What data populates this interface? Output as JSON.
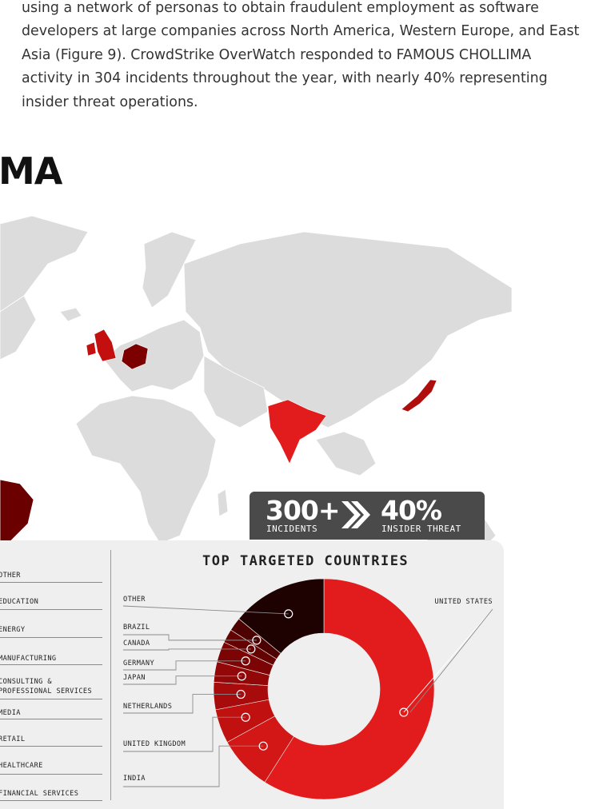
{
  "body_text": {
    "paragraph": "using a network of personas to obtain fraudulent employment as software developers at large companies across North America, Western Europe, and East Asia (Figure 9). CrowdStrike OverWatch responded to FAMOUS CHOLLIMA activity in 304 incidents throughout the year, with nearly 40% representing insider threat operations.",
    "heading": "MA"
  },
  "colors": {
    "map_land": "#dcdcdc",
    "highlight_red": "#e21c1c",
    "highlight_dark": "#7d0000",
    "panel_bg": "#efefef",
    "stat_box_bg": "#4a4a4a"
  },
  "stats": {
    "incidents_value": "300+",
    "incidents_label": "INCIDENTS",
    "insider_value": "40%",
    "insider_label": "INSIDER THREAT",
    "chevron_icon": "double-chevron-right-icon"
  },
  "industries": [
    "OTHER",
    "EDUCATION",
    "ENERGY",
    "MANUFACTURING",
    "CONSULTING & PROFESSIONAL SERVICES",
    "MEDIA",
    "RETAIL",
    "HEALTHCARE",
    "FINANCIAL SERVICES"
  ],
  "chart_data": {
    "type": "pie",
    "title": "TOP TARGETED COUNTRIES",
    "categories": [
      "UNITED STATES",
      "INDIA",
      "UNITED KINGDOM",
      "NETHERLANDS",
      "JAPAN",
      "GERMANY",
      "CANADA",
      "BRAZIL",
      "OTHER"
    ],
    "values": [
      59,
      8,
      5,
      4,
      3,
      3,
      2,
      2,
      14
    ],
    "colors": [
      "#e21c1c",
      "#d31616",
      "#c01010",
      "#a80b0b",
      "#920707",
      "#7c0404",
      "#650202",
      "#4e0101",
      "#1e0202"
    ]
  }
}
